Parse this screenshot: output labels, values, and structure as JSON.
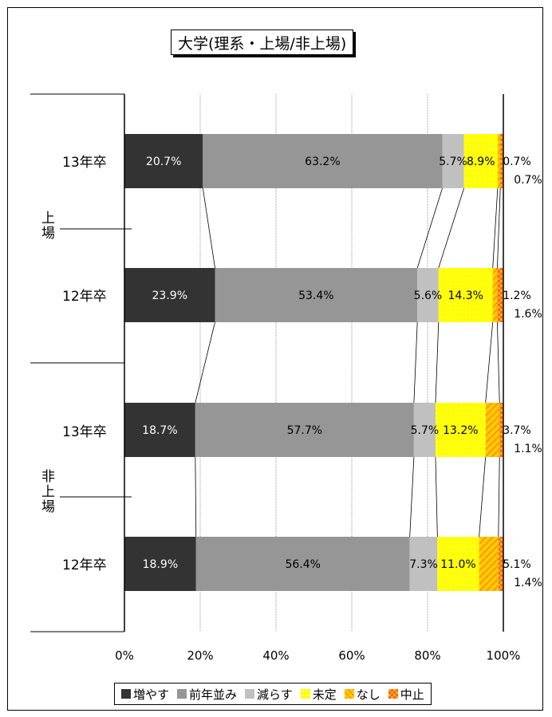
{
  "chart_data": {
    "type": "bar",
    "stacked": "percent",
    "title": "大学(理系・上場/非上場)",
    "groups": [
      "上場",
      "非上場"
    ],
    "categories": [
      {
        "group": "上場",
        "label": "13年卒"
      },
      {
        "group": "上場",
        "label": "12年卒"
      },
      {
        "group": "非上場",
        "label": "13年卒"
      },
      {
        "group": "非上場",
        "label": "12年卒"
      }
    ],
    "series": [
      {
        "name": "増やす",
        "color": "#333333",
        "values": [
          20.7,
          23.9,
          18.7,
          18.9
        ]
      },
      {
        "name": "前年並み",
        "color": "#969696",
        "values": [
          63.2,
          53.4,
          57.7,
          56.4
        ]
      },
      {
        "name": "減らす",
        "color": "#c0c0c0",
        "values": [
          5.7,
          5.6,
          5.7,
          7.3
        ]
      },
      {
        "name": "未定",
        "color": "#ffff00",
        "values": [
          8.9,
          14.3,
          13.2,
          11.0
        ]
      },
      {
        "name": "なし",
        "color": "#ffcc00",
        "values": [
          0.7,
          1.2,
          3.7,
          5.1
        ]
      },
      {
        "name": "中止",
        "color": "#ff6600",
        "values": [
          0.7,
          1.6,
          1.1,
          1.4
        ]
      }
    ],
    "data_labels": [
      [
        "20.7%",
        "63.2%",
        "5.7%",
        "8.9%",
        "0.7%",
        "0.7%"
      ],
      [
        "23.9%",
        "53.4%",
        "5.6%",
        "14.3%",
        "1.2%",
        "1.6%"
      ],
      [
        "18.7%",
        "57.7%",
        "5.7%",
        "13.2%",
        "3.7%",
        "1.1%"
      ],
      [
        "18.9%",
        "56.4%",
        "7.3%",
        "11.0%",
        "5.1%",
        "1.4%"
      ]
    ],
    "x_ticks": [
      "0%",
      "20%",
      "40%",
      "60%",
      "80%",
      "100%"
    ],
    "xlim": [
      0,
      100
    ],
    "grid": true,
    "series_lines": true,
    "legend": "bottom"
  }
}
